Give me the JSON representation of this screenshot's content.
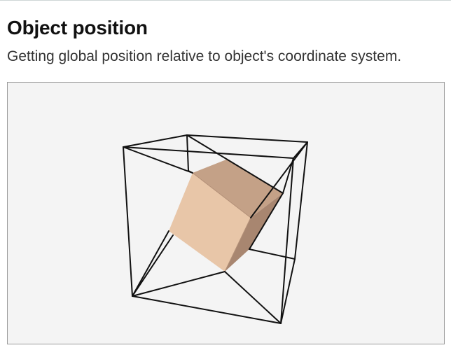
{
  "header": {
    "title": "Object position",
    "subtitle": "Getting global position relative to object's coordinate system."
  },
  "scene": {
    "description_name": "3d-viewport",
    "background_color": "#f4f4f4",
    "outline_color": "#111111",
    "cube_colors": {
      "front": "#e8c6a8",
      "top": "#c4a187",
      "side": "#a88670",
      "edge": "#b39078"
    }
  }
}
